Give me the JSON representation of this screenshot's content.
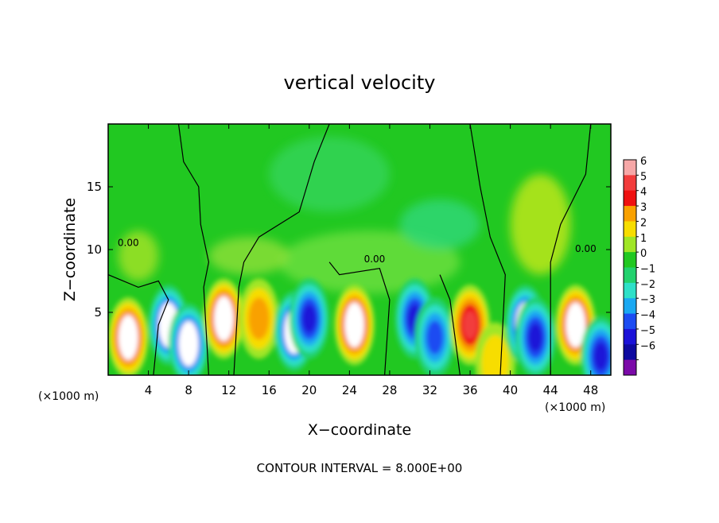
{
  "chart_data": {
    "type": "heatmap",
    "title": "vertical velocity",
    "xlabel": "X−coordinate",
    "ylabel": "Z−coordinate",
    "x_unit_left": "(×1000 m)",
    "x_unit_right": "(×1000 m)",
    "footer": "CONTOUR INTERVAL = 8.000E+00",
    "xlim": [
      0,
      50
    ],
    "ylim": [
      0,
      20
    ],
    "x_ticks": [
      4,
      8,
      12,
      16,
      20,
      24,
      28,
      32,
      36,
      40,
      44,
      48
    ],
    "y_ticks": [
      5,
      10,
      15
    ],
    "colorbar": {
      "levels": [
        "6",
        "5",
        "4",
        "3",
        "2",
        "1",
        "0",
        "−1",
        "−2",
        "−3",
        "−4",
        "−5",
        "−6"
      ],
      "colors": [
        "#f6a7a7",
        "#f23c3c",
        "#ef1111",
        "#f9a100",
        "#f7dd00",
        "#a0e626",
        "#21c821",
        "#22d26e",
        "#2ee0c8",
        "#1aa8f2",
        "#1c4cf2",
        "#1b12d8",
        "#0e0aa0",
        "#7b0aa8"
      ]
    },
    "contour_label": "0.00",
    "updrafts": [
      {
        "x": 2.0,
        "z": 3.0,
        "w": 6
      },
      {
        "x": 6.0,
        "z": 4.0,
        "w": -6
      },
      {
        "x": 8.0,
        "z": 2.5,
        "w": -6
      },
      {
        "x": 11.5,
        "z": 4.5,
        "w": 6
      },
      {
        "x": 15.0,
        "z": 4.5,
        "w": 3
      },
      {
        "x": 18.5,
        "z": 3.5,
        "w": -6
      },
      {
        "x": 20.0,
        "z": 4.5,
        "w": -5
      },
      {
        "x": 24.5,
        "z": 4.0,
        "w": 6
      },
      {
        "x": 30.5,
        "z": 4.5,
        "w": -5
      },
      {
        "x": 32.5,
        "z": 3.0,
        "w": -4
      },
      {
        "x": 36.0,
        "z": 4.0,
        "w": 5
      },
      {
        "x": 38.5,
        "z": 1.0,
        "w": 2
      },
      {
        "x": 41.5,
        "z": 4.0,
        "w": -6
      },
      {
        "x": 42.5,
        "z": 3.0,
        "w": -5
      },
      {
        "x": 46.5,
        "z": 4.0,
        "w": 6
      },
      {
        "x": 49.0,
        "z": 1.5,
        "w": -5
      }
    ]
  }
}
